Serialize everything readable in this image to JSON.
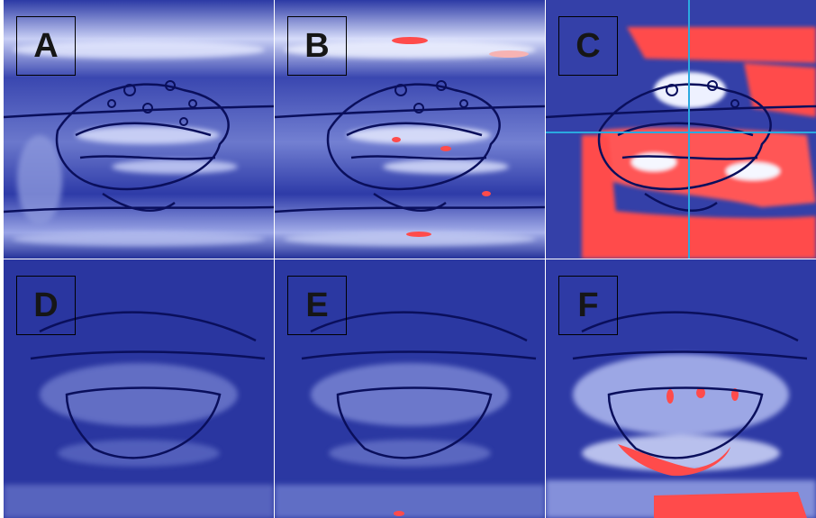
{
  "figure": {
    "panels": [
      {
        "label": "A",
        "red_level": 0.0,
        "brightness": 0.55,
        "crosshair": false
      },
      {
        "label": "B",
        "red_level": 0.15,
        "brightness": 0.55,
        "crosshair": false
      },
      {
        "label": "C",
        "red_level": 0.85,
        "brightness": 0.6,
        "crosshair": true
      },
      {
        "label": "D",
        "red_level": 0.0,
        "brightness": 0.25,
        "crosshair": false
      },
      {
        "label": "E",
        "red_level": 0.03,
        "brightness": 0.3,
        "crosshair": false
      },
      {
        "label": "F",
        "red_level": 0.35,
        "brightness": 0.45,
        "crosshair": false
      }
    ],
    "colors": {
      "background_dark": "#15207a",
      "mid_blue": "#3a47b0",
      "light": "#e8ecff",
      "contour": "#0a0f5c",
      "hot": "#ff4b4b",
      "crosshair": "#2aa9e0"
    }
  }
}
